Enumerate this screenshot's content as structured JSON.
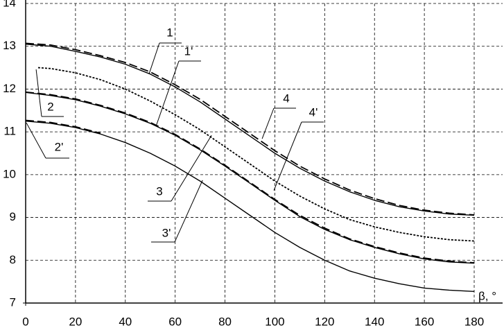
{
  "chart_data": {
    "type": "line",
    "x_label": "β, °",
    "xlim": [
      0,
      180
    ],
    "xticks": [
      0,
      20,
      40,
      60,
      80,
      100,
      120,
      140,
      160,
      180
    ],
    "ylim": [
      7,
      14
    ],
    "yticks": [
      7,
      8,
      9,
      10,
      11,
      12,
      13,
      14
    ],
    "grid": true,
    "series": [
      {
        "color": "#000000",
        "style": "solid",
        "x": [
          0,
          10,
          20,
          30,
          40,
          50,
          60,
          70,
          80,
          90,
          100,
          110,
          120,
          130,
          140,
          150,
          160,
          170,
          180
        ],
        "values": [
          13.05,
          13.0,
          12.88,
          12.75,
          12.58,
          12.35,
          12.05,
          11.7,
          11.3,
          10.9,
          10.5,
          10.15,
          9.85,
          9.6,
          9.4,
          9.25,
          9.15,
          9.08,
          9.05
        ]
      },
      {
        "color": "#000000",
        "style": "dashed",
        "x": [
          0,
          10,
          20,
          30,
          40,
          50,
          60,
          70,
          80,
          90,
          100,
          110,
          120,
          130,
          140,
          150,
          160,
          170,
          180
        ],
        "values": [
          13.07,
          13.03,
          12.92,
          12.78,
          12.62,
          12.4,
          12.1,
          11.76,
          11.36,
          10.96,
          10.56,
          10.2,
          9.9,
          9.64,
          9.44,
          9.28,
          9.17,
          9.1,
          9.06
        ]
      },
      {
        "color": "#000000",
        "style": "dotted",
        "x": [
          5,
          10,
          20,
          30,
          40,
          50,
          60,
          70,
          80,
          90,
          100,
          110,
          120,
          130,
          140,
          150,
          160,
          170,
          180
        ],
        "values": [
          12.5,
          12.48,
          12.38,
          12.22,
          12.0,
          11.72,
          11.4,
          11.05,
          10.65,
          10.25,
          9.85,
          9.5,
          9.2,
          8.95,
          8.78,
          8.65,
          8.55,
          8.48,
          8.45
        ]
      },
      {
        "color": "#000000",
        "style": "solid",
        "x": [
          0,
          10,
          20,
          30,
          40,
          50,
          60,
          70,
          80,
          90,
          100,
          110,
          120,
          130,
          140,
          150,
          160,
          170,
          180
        ],
        "values": [
          11.92,
          11.85,
          11.75,
          11.6,
          11.42,
          11.2,
          10.92,
          10.58,
          10.2,
          9.8,
          9.4,
          9.02,
          8.72,
          8.48,
          8.3,
          8.15,
          8.03,
          7.96,
          7.93
        ]
      },
      {
        "color": "#000000",
        "style": "dashed",
        "x": [
          0,
          10,
          20,
          30,
          40,
          50,
          60,
          70,
          80,
          90,
          100,
          110,
          120,
          130,
          140,
          150,
          160,
          170,
          180
        ],
        "values": [
          11.93,
          11.87,
          11.77,
          11.62,
          11.44,
          11.22,
          10.94,
          10.6,
          10.22,
          9.82,
          9.42,
          9.05,
          8.75,
          8.5,
          8.32,
          8.17,
          8.05,
          7.98,
          7.94
        ]
      },
      {
        "color": "#000000",
        "style": "solid",
        "x": [
          0,
          10,
          20,
          30,
          40,
          50,
          60,
          70,
          80,
          90,
          100,
          110,
          120,
          130,
          140,
          150,
          160,
          170,
          180
        ],
        "values": [
          11.25,
          11.2,
          11.1,
          10.95,
          10.75,
          10.5,
          10.2,
          9.85,
          9.45,
          9.05,
          8.65,
          8.3,
          8.0,
          7.75,
          7.58,
          7.45,
          7.35,
          7.3,
          7.27
        ]
      },
      {
        "color": "#000000",
        "style": "dashed",
        "x": [
          0,
          10,
          20,
          30
        ],
        "values": [
          11.27,
          11.22,
          11.12,
          10.97
        ]
      }
    ],
    "annotations": [
      {
        "text": "1",
        "x": 49.5,
        "y": 12.35
      },
      {
        "text": "1'",
        "x": 52.3,
        "y": 11.13
      },
      {
        "text": "2",
        "x": 4.2,
        "y": 12.46
      },
      {
        "text": "2'",
        "x": 0.3,
        "y": 11.21
      },
      {
        "text": "3",
        "x": 74.6,
        "y": 10.92
      },
      {
        "text": "3'",
        "x": 71,
        "y": 9.87
      },
      {
        "text": "4",
        "x": 94.9,
        "y": 10.84
      },
      {
        "text": "4'",
        "x": 99.6,
        "y": 9.63
      }
    ]
  }
}
